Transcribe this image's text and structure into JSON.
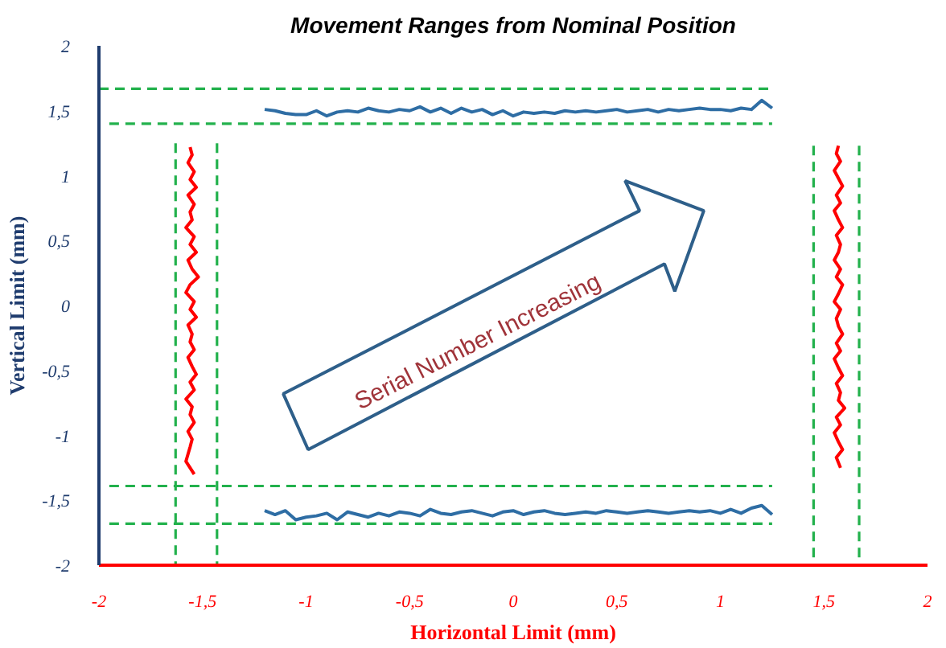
{
  "chart_data": {
    "type": "line",
    "title": "Movement Ranges from Nominal Position",
    "xlabel": "Horizontal Limit (mm)",
    "ylabel": "Vertical Limit (mm)",
    "xlim": [
      -2,
      2
    ],
    "ylim": [
      -2,
      2
    ],
    "xticks": [
      {
        "value": -2,
        "label": "-2"
      },
      {
        "value": -1.5,
        "label": "-1,5"
      },
      {
        "value": -1,
        "label": "-1"
      },
      {
        "value": -0.5,
        "label": "-0,5"
      },
      0,
      {
        "value": 0.5,
        "label": "0,5"
      },
      1,
      {
        "value": 1.5,
        "label": "1,5"
      },
      2
    ],
    "yticks": [
      {
        "value": -2,
        "label": "-2"
      },
      {
        "value": -1.5,
        "label": "-1,5"
      },
      {
        "value": -1,
        "label": "-1"
      },
      {
        "value": -0.5,
        "label": "-0,5"
      },
      0,
      {
        "value": 0.5,
        "label": "0,5"
      },
      1,
      {
        "value": 1.5,
        "label": "1,5"
      },
      2
    ],
    "grid": false,
    "marker": "none",
    "annotations": [
      "Serial Number Increasing"
    ],
    "series": [
      {
        "color": "#2e6da4",
        "line_style": "solid",
        "x": [
          -1.2,
          -1.15,
          -1.1,
          -1.05,
          -1.0,
          -0.95,
          -0.9,
          -0.85,
          -0.8,
          -0.75,
          -0.7,
          -0.65,
          -0.6,
          -0.55,
          -0.5,
          -0.45,
          -0.4,
          -0.35,
          -0.3,
          -0.25,
          -0.2,
          -0.15,
          -0.1,
          -0.05,
          0.0,
          0.05,
          0.1,
          0.15,
          0.2,
          0.25,
          0.3,
          0.35,
          0.4,
          0.45,
          0.5,
          0.55,
          0.6,
          0.65,
          0.7,
          0.75,
          0.8,
          0.85,
          0.9,
          0.95,
          1.0,
          1.05,
          1.1,
          1.15,
          1.2,
          1.25
        ],
        "values": [
          1.51,
          1.5,
          1.48,
          1.47,
          1.47,
          1.5,
          1.46,
          1.49,
          1.5,
          1.49,
          1.52,
          1.5,
          1.49,
          1.51,
          1.5,
          1.53,
          1.49,
          1.52,
          1.48,
          1.52,
          1.49,
          1.51,
          1.47,
          1.5,
          1.46,
          1.49,
          1.48,
          1.49,
          1.48,
          1.5,
          1.49,
          1.5,
          1.49,
          1.5,
          1.51,
          1.49,
          1.5,
          1.51,
          1.49,
          1.51,
          1.5,
          1.51,
          1.52,
          1.51,
          1.51,
          1.5,
          1.52,
          1.51,
          1.58,
          1.52
        ]
      },
      {
        "color": "#2e6da4",
        "line_style": "solid",
        "x": [
          -1.2,
          -1.15,
          -1.1,
          -1.05,
          -1.0,
          -0.95,
          -0.9,
          -0.85,
          -0.8,
          -0.75,
          -0.7,
          -0.65,
          -0.6,
          -0.55,
          -0.5,
          -0.45,
          -0.4,
          -0.35,
          -0.3,
          -0.25,
          -0.2,
          -0.15,
          -0.1,
          -0.05,
          0.0,
          0.05,
          0.1,
          0.15,
          0.2,
          0.25,
          0.3,
          0.35,
          0.4,
          0.45,
          0.5,
          0.55,
          0.6,
          0.65,
          0.7,
          0.75,
          0.8,
          0.85,
          0.9,
          0.95,
          1.0,
          1.05,
          1.1,
          1.15,
          1.2,
          1.25
        ],
        "values": [
          -1.58,
          -1.61,
          -1.58,
          -1.65,
          -1.63,
          -1.62,
          -1.6,
          -1.65,
          -1.59,
          -1.61,
          -1.63,
          -1.6,
          -1.62,
          -1.59,
          -1.6,
          -1.62,
          -1.57,
          -1.6,
          -1.61,
          -1.59,
          -1.58,
          -1.6,
          -1.62,
          -1.59,
          -1.58,
          -1.61,
          -1.59,
          -1.58,
          -1.6,
          -1.61,
          -1.6,
          -1.59,
          -1.6,
          -1.58,
          -1.59,
          -1.6,
          -1.59,
          -1.58,
          -1.59,
          -1.6,
          -1.59,
          -1.58,
          -1.59,
          -1.58,
          -1.6,
          -1.57,
          -1.6,
          -1.56,
          -1.54,
          -1.61
        ]
      },
      {
        "color": "#ff0000",
        "line_style": "solid",
        "x": [
          -1.56,
          -1.55,
          -1.57,
          -1.54,
          -1.56,
          -1.53,
          -1.57,
          -1.54,
          -1.56,
          -1.55,
          -1.58,
          -1.54,
          -1.56,
          -1.53,
          -1.57,
          -1.55,
          -1.52,
          -1.56,
          -1.58,
          -1.54,
          -1.56,
          -1.53,
          -1.57,
          -1.55,
          -1.56,
          -1.54,
          -1.57,
          -1.55,
          -1.53,
          -1.56,
          -1.54,
          -1.58,
          -1.55,
          -1.56,
          -1.54,
          -1.57,
          -1.55,
          -1.56,
          -1.58,
          -1.54
        ],
        "values": [
          1.22,
          1.16,
          1.1,
          1.03,
          0.97,
          0.91,
          0.85,
          0.78,
          0.72,
          0.66,
          0.6,
          0.53,
          0.47,
          0.41,
          0.35,
          0.28,
          0.22,
          0.16,
          0.1,
          0.03,
          -0.03,
          -0.09,
          -0.15,
          -0.22,
          -0.28,
          -0.34,
          -0.4,
          -0.47,
          -0.53,
          -0.59,
          -0.65,
          -0.72,
          -0.78,
          -0.84,
          -0.9,
          -0.97,
          -1.03,
          -1.09,
          -1.2,
          -1.3
        ]
      },
      {
        "color": "#ff0000",
        "line_style": "solid",
        "x": [
          1.57,
          1.56,
          1.58,
          1.55,
          1.57,
          1.59,
          1.56,
          1.58,
          1.55,
          1.57,
          1.59,
          1.56,
          1.58,
          1.57,
          1.55,
          1.58,
          1.56,
          1.59,
          1.57,
          1.55,
          1.58,
          1.56,
          1.57,
          1.59,
          1.56,
          1.58,
          1.55,
          1.57,
          1.59,
          1.56,
          1.58,
          1.57,
          1.6,
          1.56,
          1.58,
          1.55,
          1.57,
          1.59,
          1.56,
          1.58
        ],
        "values": [
          1.23,
          1.17,
          1.11,
          1.04,
          0.98,
          0.92,
          0.85,
          0.79,
          0.73,
          0.66,
          0.6,
          0.54,
          0.47,
          0.41,
          0.35,
          0.28,
          0.22,
          0.16,
          0.09,
          0.03,
          -0.03,
          -0.1,
          -0.16,
          -0.22,
          -0.29,
          -0.35,
          -0.41,
          -0.48,
          -0.54,
          -0.6,
          -0.67,
          -0.73,
          -0.79,
          -0.86,
          -0.92,
          -0.98,
          -1.05,
          -1.11,
          -1.17,
          -1.25
        ]
      },
      {
        "color": "#22b14c",
        "line_style": "dashed",
        "x": [
          -2,
          1.25
        ],
        "values": [
          1.67,
          1.67
        ]
      },
      {
        "color": "#22b14c",
        "line_style": "dashed",
        "x": [
          -1.95,
          1.25
        ],
        "values": [
          1.4,
          1.4
        ]
      },
      {
        "color": "#22b14c",
        "line_style": "dashed",
        "x": [
          -1.95,
          1.25
        ],
        "values": [
          -1.39,
          -1.39
        ]
      },
      {
        "color": "#22b14c",
        "line_style": "dashed",
        "x": [
          -1.95,
          1.25
        ],
        "values": [
          -1.68,
          -1.68
        ]
      },
      {
        "color": "#22b14c",
        "line_style": "dashed",
        "x": [
          -1.63,
          -1.63
        ],
        "values": [
          1.25,
          -2
        ]
      },
      {
        "color": "#22b14c",
        "line_style": "dashed",
        "x": [
          -1.43,
          -1.43
        ],
        "values": [
          1.25,
          -2
        ]
      },
      {
        "color": "#22b14c",
        "line_style": "dashed",
        "x": [
          1.45,
          1.45
        ],
        "values": [
          1.23,
          -2
        ]
      },
      {
        "color": "#22b14c",
        "line_style": "dashed",
        "x": [
          1.67,
          1.67
        ],
        "values": [
          1.23,
          -2
        ]
      }
    ]
  }
}
